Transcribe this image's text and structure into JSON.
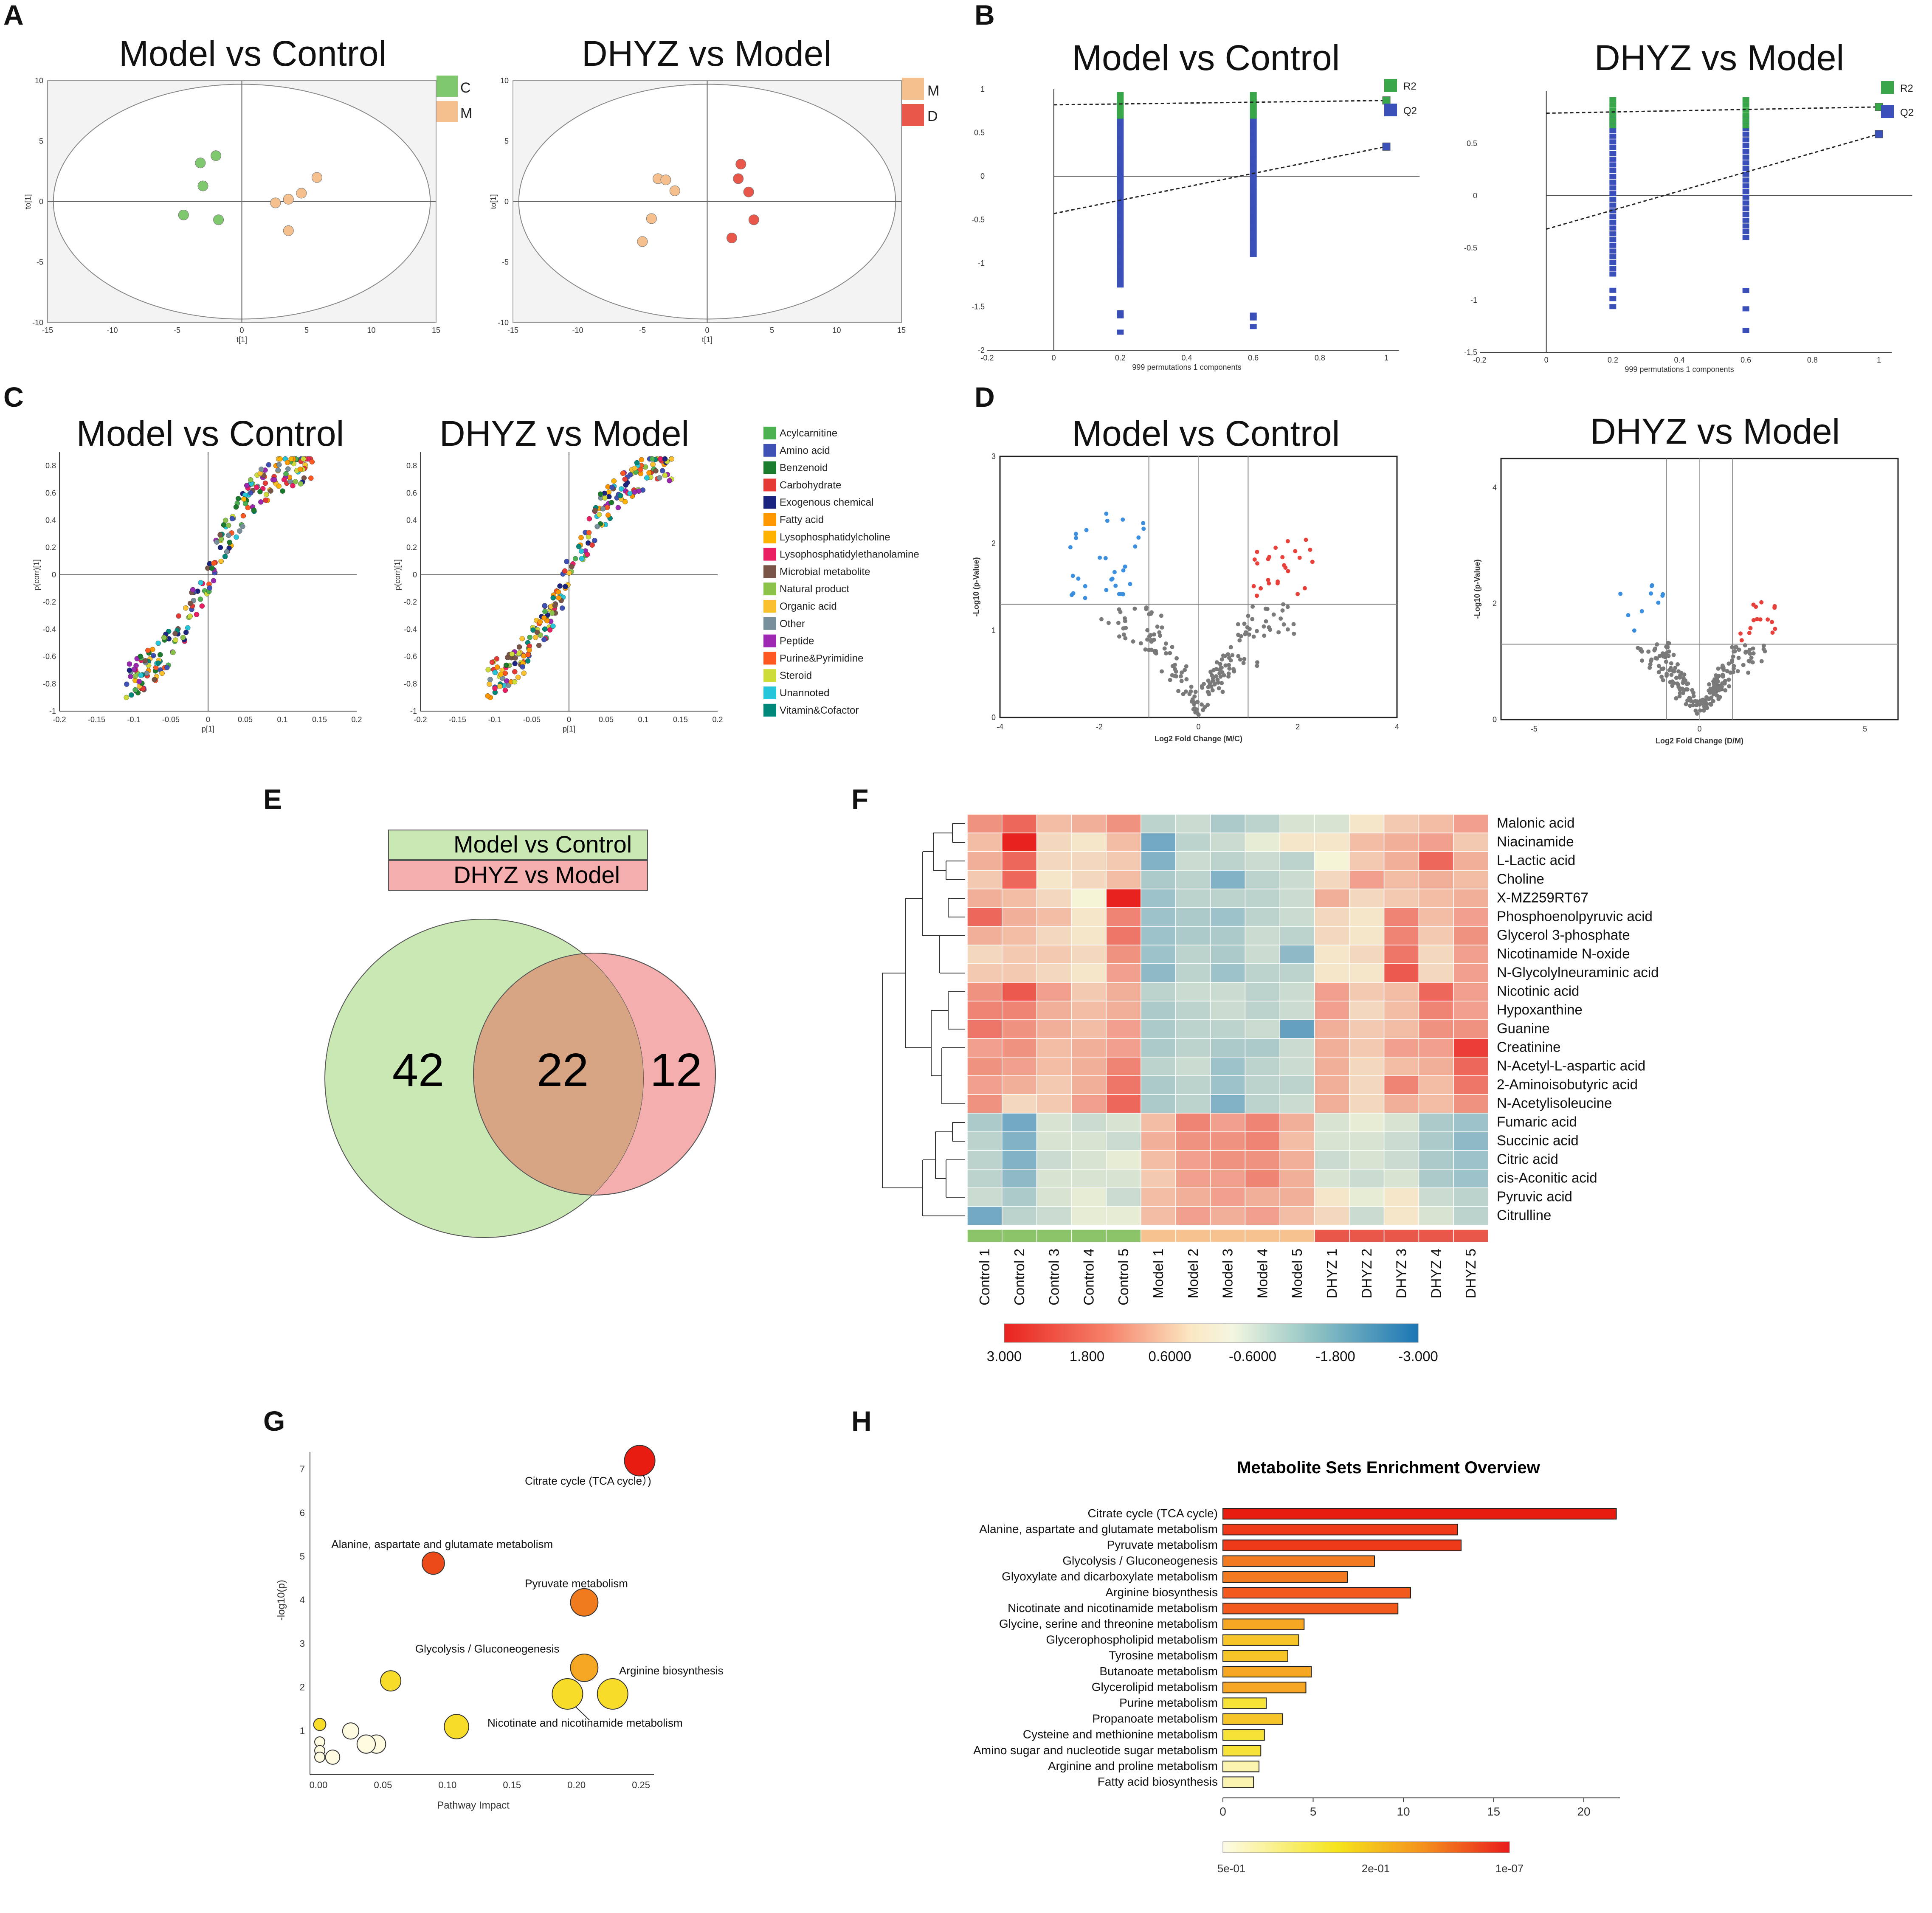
{
  "panels": {
    "A": {
      "letter": "A",
      "titles": [
        "Model vs Control",
        "DHYZ vs Model"
      ],
      "legend1": [
        "C",
        "M"
      ],
      "legend2": [
        "M",
        "D"
      ],
      "colors": {
        "C": "#7fc86e",
        "M": "#f5c08e",
        "D": "#e8574a"
      }
    },
    "B": {
      "letter": "B",
      "titles": [
        "Model vs Control",
        "DHYZ vs Model"
      ],
      "legend": [
        "R2",
        "Q2"
      ],
      "xlabel": "999 permutations 1 components",
      "colors": {
        "R2": "#3aa64a",
        "Q2": "#3a4fb7"
      }
    },
    "C": {
      "letter": "C",
      "titles": [
        "Model vs Control",
        "DHYZ vs Model"
      ],
      "ylabel": "p(corr)[1]",
      "xlabel": "p[1]"
    },
    "D": {
      "letter": "D",
      "titles": [
        "Model vs Control",
        "DHYZ vs Model"
      ],
      "ylabel": "-Log10 (p-Value)",
      "xlabels": [
        "Log2 Fold Change (M/C)",
        "Log2 Fold Change (D/M)"
      ]
    },
    "E": {
      "letter": "E",
      "legend": [
        "Model vs Control",
        "DHYZ vs Model"
      ],
      "counts": [
        "42",
        "22",
        "12"
      ]
    },
    "F": {
      "letter": "F"
    },
    "G": {
      "letter": "G"
    },
    "H": {
      "letter": "H"
    }
  },
  "chart_data": [
    {
      "id": "A-left",
      "type": "scatter",
      "title": "Model vs Control",
      "xlim": [
        -15,
        15
      ],
      "ylim": [
        -10,
        10
      ],
      "xlabel": "t[1]",
      "ylabel": "to[1]",
      "xticks": [
        -15,
        -10,
        -5,
        0,
        5,
        10,
        15
      ],
      "yticks": [
        -10,
        -5,
        0,
        5,
        10
      ],
      "series": [
        {
          "name": "C",
          "x": [
            -2.0,
            -3.2,
            -3.0,
            -4.5,
            -1.8
          ],
          "y": [
            3.8,
            3.2,
            1.3,
            -1.1,
            -1.5
          ]
        },
        {
          "name": "M",
          "x": [
            5.8,
            4.6,
            3.6,
            2.6,
            3.6
          ],
          "y": [
            2.0,
            0.7,
            0.2,
            -0.1,
            -2.4
          ]
        }
      ]
    },
    {
      "id": "A-right",
      "type": "scatter",
      "title": "DHYZ vs Model",
      "xlim": [
        -15,
        15
      ],
      "ylim": [
        -10,
        10
      ],
      "xlabel": "t[1]",
      "ylabel": "to[1]",
      "xticks": [
        -15,
        -10,
        -5,
        0,
        5,
        10,
        15
      ],
      "yticks": [
        -10,
        -5,
        0,
        5,
        10
      ],
      "series": [
        {
          "name": "M",
          "x": [
            -3.8,
            -3.2,
            -2.5,
            -4.3,
            -5.0
          ],
          "y": [
            1.9,
            1.8,
            0.9,
            -1.4,
            -3.3
          ]
        },
        {
          "name": "D",
          "x": [
            2.6,
            2.4,
            3.2,
            3.6,
            1.9
          ],
          "y": [
            3.1,
            1.9,
            0.8,
            -1.5,
            -3.0
          ]
        }
      ]
    },
    {
      "id": "B-left",
      "type": "scatter",
      "title": "Model vs Control",
      "xlim": [
        -0.2,
        1
      ],
      "ylim": [
        -2,
        1
      ],
      "xlabel": "999 permutations 1 components",
      "xticks": [
        -0.2,
        0,
        0.2,
        0.4,
        0.6,
        0.8,
        1
      ],
      "yticks": [
        -2,
        -1.5,
        -1,
        -0.5,
        0,
        0.5,
        1
      ],
      "series": [
        {
          "name": "R2",
          "x": [
            1.0
          ],
          "y": [
            0.87
          ],
          "trend": [
            [
              0,
              0.82
            ],
            [
              1,
              0.87
            ]
          ]
        },
        {
          "name": "Q2",
          "x": [
            1.0
          ],
          "y": [
            0.34
          ],
          "trend": [
            [
              0,
              -0.43
            ],
            [
              1,
              0.34
            ]
          ]
        }
      ]
    },
    {
      "id": "B-right",
      "type": "scatter",
      "title": "DHYZ vs Model",
      "xlim": [
        -0.2,
        1
      ],
      "ylim": [
        -1.5,
        1
      ],
      "xlabel": "999 permutations 1 components",
      "xticks": [
        -0.2,
        0,
        0.2,
        0.4,
        0.6,
        0.8,
        1
      ],
      "yticks": [
        -1.5,
        -1,
        -0.5,
        0,
        0.5
      ],
      "series": [
        {
          "name": "R2",
          "x": [
            1.0
          ],
          "y": [
            0.85
          ],
          "trend": [
            [
              0,
              0.79
            ],
            [
              1,
              0.85
            ]
          ]
        },
        {
          "name": "Q2",
          "x": [
            1.0
          ],
          "y": [
            0.59
          ],
          "trend": [
            [
              0,
              -0.32
            ],
            [
              1,
              0.59
            ]
          ]
        }
      ]
    },
    {
      "id": "C-left",
      "type": "scatter",
      "title": "Model vs Control",
      "xlim": [
        -0.2,
        0.2
      ],
      "ylim": [
        -1,
        0.8
      ],
      "xlabel": "p[1]",
      "ylabel": "p(corr)[1]",
      "xticks": [
        -0.2,
        -0.15,
        -0.1,
        -0.05,
        0,
        0.05,
        0.1,
        0.15,
        0.2
      ],
      "yticks": [
        -1,
        -0.8,
        -0.6,
        -0.4,
        -0.2,
        0,
        0.2,
        0.4,
        0.6,
        0.8
      ],
      "categories": [
        "Acylcarnitine",
        "Amino acid",
        "Benzenoid",
        "Carbohydrate",
        "Exogenous chemical",
        "Fatty acid",
        "Lysophosphatidylcholine",
        "Lysophosphatidylethanolamine",
        "Microbial metabolite",
        "Natural product",
        "Organic acid",
        "Other",
        "Peptide",
        "Purine&Pyrimidine",
        "Steroid",
        "Unannoted",
        "Vitamin&Cofactor"
      ]
    },
    {
      "id": "C-right",
      "type": "scatter",
      "title": "DHYZ vs Model",
      "xlim": [
        -0.2,
        0.2
      ],
      "ylim": [
        -1,
        0.8
      ],
      "xlabel": "p[1]",
      "ylabel": "p(corr)[1]",
      "xticks": [
        -0.2,
        -0.15,
        -0.1,
        -0.05,
        0,
        0.05,
        0.1,
        0.15,
        0.2
      ],
      "yticks": [
        -1,
        -0.8,
        -0.6,
        -0.4,
        -0.2,
        0,
        0.2,
        0.4,
        0.6,
        0.8
      ]
    },
    {
      "id": "D-left",
      "type": "scatter",
      "title": "Model vs Control",
      "xlim": [
        -4,
        4
      ],
      "ylim": [
        0,
        3
      ],
      "xlabel": "Log2 Fold Change (M/C)",
      "xticks": [
        -4,
        -2,
        0,
        2,
        4
      ],
      "yticks": [
        0,
        1,
        2,
        3
      ],
      "fc_threshold": 1,
      "p_threshold": 1.3
    },
    {
      "id": "D-right",
      "type": "scatter",
      "title": "DHYZ vs Model",
      "xlim": [
        -6,
        6
      ],
      "ylim": [
        0,
        4.5
      ],
      "xlabel": "Log2 Fold Change (D/M)",
      "xticks": [
        -5,
        0,
        5
      ],
      "yticks": [
        0,
        2,
        4
      ],
      "fc_threshold": 1,
      "p_threshold": 1.3
    },
    {
      "id": "E",
      "type": "venn",
      "sets": [
        "Model vs Control",
        "DHYZ vs Model"
      ],
      "values": {
        "Model vs Control only": 42,
        "both": 22,
        "DHYZ vs Model only": 12
      }
    },
    {
      "id": "F",
      "type": "heatmap",
      "rows": [
        "Malonic acid",
        "Niacinamide",
        "L-Lactic acid",
        "Choline",
        "X-MZ259RT67",
        "Phosphoenolpyruvic acid",
        "Glycerol 3-phosphate",
        "Nicotinamide N-oxide",
        "N-Glycolylneuraminic acid",
        "Nicotinic acid",
        "Hypoxanthine",
        "Guanine",
        "Creatinine",
        "N-Acetyl-L-aspartic acid",
        "2-Aminoisobutyric acid",
        "N-Acetylisoleucine",
        "Fumaric acid",
        "Succinic acid",
        "Citric acid",
        "cis-Aconitic acid",
        "Pyruvic acid",
        "Citrulline"
      ],
      "columns": [
        "Control 1",
        "Control 2",
        "Control 3",
        "Control 4",
        "Control 5",
        "Model 1",
        "Model 2",
        "Model 3",
        "Model 4",
        "Model 5",
        "DHYZ 1",
        "DHYZ 2",
        "DHYZ 3",
        "DHYZ 4",
        "DHYZ 5"
      ],
      "values": [
        [
          1.4,
          2.0,
          0.8,
          1.0,
          1.4,
          -0.8,
          -0.6,
          -1.0,
          -0.8,
          -0.4,
          -0.4,
          0.2,
          0.6,
          0.8,
          1.2
        ],
        [
          0.8,
          3.0,
          0.4,
          0.2,
          0.8,
          -1.8,
          -0.8,
          -0.6,
          -0.2,
          0.2,
          0.2,
          0.8,
          1.0,
          1.2,
          0.6
        ],
        [
          1.0,
          2.0,
          0.4,
          0.4,
          0.6,
          -1.6,
          -0.6,
          -0.8,
          -0.6,
          -0.8,
          0.0,
          0.6,
          1.0,
          2.0,
          1.0
        ],
        [
          0.6,
          2.0,
          0.2,
          0.4,
          0.8,
          -1.0,
          -0.8,
          -1.6,
          -0.8,
          -0.6,
          0.4,
          1.2,
          0.8,
          1.0,
          0.8
        ],
        [
          1.0,
          0.8,
          0.4,
          0.0,
          3.0,
          -1.2,
          -0.8,
          -0.8,
          -0.8,
          -0.6,
          1.0,
          0.4,
          0.6,
          0.8,
          1.0
        ],
        [
          2.0,
          1.0,
          0.8,
          0.2,
          1.6,
          -1.2,
          -1.0,
          -1.2,
          -0.8,
          -0.6,
          0.4,
          0.2,
          1.6,
          0.8,
          1.2
        ],
        [
          1.0,
          0.8,
          0.4,
          0.2,
          1.8,
          -1.2,
          -1.0,
          -1.0,
          -0.6,
          -0.8,
          0.4,
          0.2,
          1.6,
          0.6,
          1.4
        ],
        [
          0.4,
          0.6,
          0.6,
          0.4,
          1.4,
          -1.2,
          -0.8,
          -1.0,
          -0.6,
          -1.4,
          0.2,
          0.4,
          1.8,
          0.4,
          1.2
        ],
        [
          0.6,
          0.6,
          0.4,
          0.2,
          1.2,
          -1.4,
          -0.8,
          -1.2,
          -0.8,
          -0.8,
          0.2,
          0.2,
          2.2,
          0.4,
          1.2
        ],
        [
          1.4,
          2.2,
          1.2,
          0.6,
          1.0,
          -0.8,
          -0.6,
          -0.6,
          -0.8,
          -0.6,
          1.2,
          0.6,
          0.8,
          2.0,
          1.2
        ],
        [
          1.6,
          1.6,
          1.0,
          0.8,
          1.0,
          -1.0,
          -0.8,
          -0.6,
          -0.8,
          -0.6,
          1.2,
          0.4,
          0.8,
          1.6,
          1.2
        ],
        [
          1.8,
          1.4,
          1.0,
          0.8,
          1.2,
          -1.0,
          -0.8,
          -0.8,
          -0.6,
          -2.0,
          1.0,
          0.6,
          0.8,
          1.4,
          1.4
        ],
        [
          1.2,
          1.4,
          0.8,
          1.0,
          1.2,
          -1.0,
          -0.8,
          -1.0,
          -1.0,
          -0.6,
          1.0,
          0.6,
          1.2,
          1.2,
          2.6
        ],
        [
          1.4,
          1.2,
          0.8,
          1.0,
          1.6,
          -0.8,
          -0.6,
          -1.2,
          -0.8,
          -0.6,
          1.0,
          0.4,
          0.8,
          1.0,
          2.0
        ],
        [
          1.2,
          1.0,
          0.6,
          1.0,
          1.8,
          -1.0,
          -0.8,
          -1.2,
          -0.8,
          -0.8,
          1.0,
          0.4,
          1.6,
          0.8,
          1.8
        ],
        [
          1.4,
          0.4,
          0.6,
          1.2,
          2.0,
          -1.0,
          -0.8,
          -1.6,
          -0.8,
          -0.6,
          1.0,
          0.4,
          1.0,
          0.8,
          1.4
        ],
        [
          -1.0,
          -1.8,
          -0.4,
          -0.6,
          -0.4,
          0.8,
          1.6,
          1.2,
          1.6,
          1.0,
          -0.4,
          -0.2,
          -0.4,
          -1.0,
          -1.2
        ],
        [
          -0.8,
          -1.6,
          -0.4,
          -0.4,
          -0.6,
          1.0,
          1.4,
          1.4,
          1.6,
          0.8,
          -0.4,
          -0.4,
          -0.6,
          -1.0,
          -1.4
        ],
        [
          -0.8,
          -1.6,
          -0.6,
          -0.4,
          -0.2,
          0.8,
          1.2,
          1.4,
          1.4,
          1.0,
          -0.6,
          -0.4,
          -0.6,
          -1.0,
          -1.2
        ],
        [
          -0.8,
          -1.4,
          -0.4,
          -0.4,
          -0.4,
          0.6,
          1.2,
          1.2,
          1.6,
          1.0,
          -0.4,
          -0.6,
          -0.4,
          -1.0,
          -1.2
        ],
        [
          -0.6,
          -1.0,
          -0.4,
          -0.2,
          -0.6,
          0.8,
          1.0,
          1.2,
          1.0,
          1.0,
          0.2,
          -0.2,
          0.2,
          -0.6,
          -0.8
        ],
        [
          -1.8,
          -0.8,
          -0.6,
          -0.2,
          -0.2,
          0.8,
          1.2,
          1.0,
          1.2,
          0.8,
          0.4,
          -0.6,
          0.2,
          -0.4,
          -0.8
        ]
      ],
      "colorscale_ticks": [
        "3.000",
        "1.800",
        "0.6000",
        "-0.6000",
        "-1.800",
        "-3.000"
      ],
      "group_colors": {
        "Control": "#8cc46a",
        "Model": "#f6c28f",
        "DHYZ": "#e8574a"
      }
    },
    {
      "id": "G",
      "type": "scatter",
      "xlabel": "Pathway Impact",
      "ylabel": "-log10(p)",
      "xlim": [
        0,
        0.26
      ],
      "ylim": [
        0,
        7.4
      ],
      "xticks": [
        "0.00",
        "0.05",
        "0.10",
        "0.15",
        "0.20",
        "0.25"
      ],
      "yticks": [
        1,
        2,
        3,
        4,
        5,
        6,
        7
      ],
      "points": [
        {
          "name": "Citrate cycle (TCA cycle)",
          "x": 0.249,
          "y": 7.2,
          "r": 3.0,
          "label": "Citrate cycle (TCA cycle）)"
        },
        {
          "name": "Alanine, aspartate and glutamate metabolism",
          "x": 0.089,
          "y": 4.85,
          "r": 2.2,
          "label": "Alanine, aspartate and glutamate metabolism"
        },
        {
          "name": "Pyruvate metabolism",
          "x": 0.206,
          "y": 3.95,
          "r": 2.7,
          "label": "Pyruvate metabolism"
        },
        {
          "name": "Glycolysis / Gluconeogenesis",
          "x": 0.206,
          "y": 2.45,
          "r": 2.7,
          "label": "Glycolysis / Gluconeogenesis"
        },
        {
          "name": "Arginine biosynthesis",
          "x": 0.228,
          "y": 1.85,
          "r": 3.0,
          "label": "Arginine biosynthesis"
        },
        {
          "name": "Nicotinate and nicotinamide metabolism",
          "x": 0.193,
          "y": 1.85,
          "r": 3.0,
          "label": "Nicotinate and nicotinamide metabolism"
        },
        {
          "name": "",
          "x": 0.056,
          "y": 2.15,
          "r": 2.0,
          "label": ""
        },
        {
          "name": "",
          "x": 0.107,
          "y": 1.1,
          "r": 2.4,
          "label": ""
        },
        {
          "name": "",
          "x": 0.001,
          "y": 1.15,
          "r": 1.2,
          "label": ""
        },
        {
          "name": "",
          "x": 0.025,
          "y": 1.0,
          "r": 1.6,
          "label": ""
        },
        {
          "name": "",
          "x": 0.045,
          "y": 0.7,
          "r": 1.8,
          "label": ""
        },
        {
          "name": "",
          "x": 0.037,
          "y": 0.7,
          "r": 1.8,
          "label": ""
        },
        {
          "name": "",
          "x": 0.001,
          "y": 0.75,
          "r": 1.0,
          "label": ""
        },
        {
          "name": "",
          "x": 0.001,
          "y": 0.55,
          "r": 1.0,
          "label": ""
        },
        {
          "name": "",
          "x": 0.001,
          "y": 0.4,
          "r": 1.0,
          "label": ""
        },
        {
          "name": "",
          "x": 0.011,
          "y": 0.4,
          "r": 1.4,
          "label": ""
        }
      ]
    },
    {
      "id": "H",
      "type": "bar",
      "orientation": "horizontal",
      "title": "Metabolite Sets Enrichment Overview",
      "categories": [
        "Citrate cycle (TCA cycle)",
        "Alanine, aspartate and glutamate metabolism",
        "Pyruvate metabolism",
        "Glycolysis / Gluconeogenesis",
        "Glyoxylate and dicarboxylate metabolism",
        "Arginine biosynthesis",
        "Nicotinate and nicotinamide metabolism",
        "Glycine, serine and threonine metabolism",
        "Glycerophospholipid metabolism",
        "Tyrosine metabolism",
        "Butanoate metabolism",
        "Glycerolipid metabolism",
        "Purine metabolism",
        "Propanoate metabolism",
        "Cysteine and methionine metabolism",
        "Amino sugar and nucleotide sugar metabolism",
        "Arginine and proline metabolism",
        "Fatty acid biosynthesis"
      ],
      "values": [
        21.8,
        13.0,
        13.2,
        8.4,
        6.9,
        10.4,
        9.7,
        4.5,
        4.2,
        3.6,
        4.9,
        4.6,
        2.4,
        3.3,
        2.3,
        2.1,
        2.0,
        1.7
      ],
      "xlim": [
        0,
        22
      ],
      "xticks": [
        0,
        5,
        10,
        15,
        20
      ],
      "colorbar_ticks": [
        "5e-01",
        "2e-01",
        "1e-07"
      ]
    }
  ]
}
